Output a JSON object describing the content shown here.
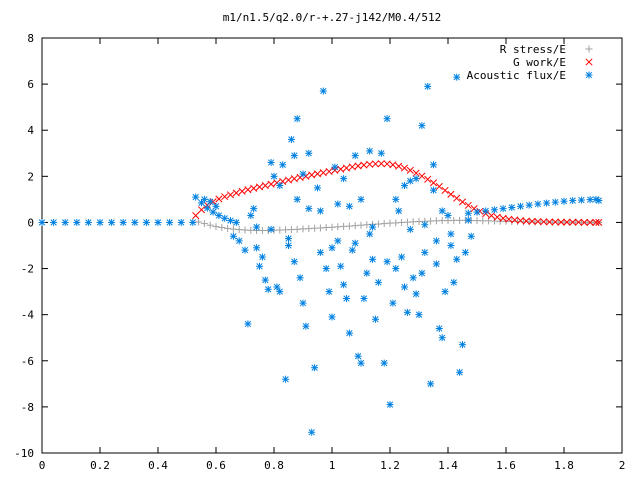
{
  "chart_data": {
    "type": "scatter",
    "title": "m1/n1.5/q2.0/r-+.27-j142/M0.4/512",
    "xlabel": "",
    "ylabel": "",
    "xlim": [
      0,
      2
    ],
    "ylim": [
      -10,
      8
    ],
    "x_ticks": [
      "0",
      "0.2",
      "0.4",
      "0.6",
      "0.8",
      "1",
      "1.2",
      "1.4",
      "1.6",
      "1.8",
      "2"
    ],
    "y_ticks": [
      "-10",
      "-8",
      "-6",
      "-4",
      "-2",
      "0",
      "2",
      "4",
      "6",
      "8"
    ],
    "legend_position": "top-right",
    "series": [
      {
        "name": "R stress/E",
        "marker": "+",
        "color": "#a0a0a0",
        "points": [
          [
            0.54,
            0.02
          ],
          [
            0.56,
            -0.05
          ],
          [
            0.58,
            -0.12
          ],
          [
            0.6,
            -0.18
          ],
          [
            0.62,
            -0.22
          ],
          [
            0.64,
            -0.26
          ],
          [
            0.66,
            -0.29
          ],
          [
            0.68,
            -0.31
          ],
          [
            0.7,
            -0.33
          ],
          [
            0.72,
            -0.34
          ],
          [
            0.74,
            -0.35
          ],
          [
            0.76,
            -0.35
          ],
          [
            0.78,
            -0.35
          ],
          [
            0.8,
            -0.34
          ],
          [
            0.82,
            -0.33
          ],
          [
            0.84,
            -0.32
          ],
          [
            0.86,
            -0.31
          ],
          [
            0.88,
            -0.3
          ],
          [
            0.9,
            -0.28
          ],
          [
            0.92,
            -0.27
          ],
          [
            0.94,
            -0.25
          ],
          [
            0.96,
            -0.24
          ],
          [
            0.98,
            -0.22
          ],
          [
            1.0,
            -0.21
          ],
          [
            1.02,
            -0.19
          ],
          [
            1.04,
            -0.17
          ],
          [
            1.06,
            -0.16
          ],
          [
            1.08,
            -0.14
          ],
          [
            1.1,
            -0.12
          ],
          [
            1.12,
            -0.1
          ],
          [
            1.14,
            -0.08
          ],
          [
            1.16,
            -0.07
          ],
          [
            1.18,
            -0.05
          ],
          [
            1.2,
            -0.03
          ],
          [
            1.22,
            -0.02
          ],
          [
            1.24,
            0.0
          ],
          [
            1.26,
            0.01
          ],
          [
            1.28,
            0.03
          ],
          [
            1.3,
            0.04
          ],
          [
            1.32,
            0.05
          ],
          [
            1.34,
            0.06
          ],
          [
            1.36,
            0.07
          ],
          [
            1.38,
            0.08
          ],
          [
            1.4,
            0.08
          ],
          [
            1.42,
            0.09
          ],
          [
            1.44,
            0.09
          ],
          [
            1.46,
            0.09
          ],
          [
            1.48,
            0.08
          ],
          [
            1.5,
            0.08
          ],
          [
            1.52,
            0.07
          ],
          [
            1.54,
            0.07
          ],
          [
            1.56,
            0.06
          ],
          [
            1.58,
            0.05
          ],
          [
            1.6,
            0.05
          ],
          [
            1.62,
            0.04
          ],
          [
            1.64,
            0.04
          ],
          [
            1.66,
            0.03
          ],
          [
            1.68,
            0.03
          ],
          [
            1.7,
            0.02
          ],
          [
            1.72,
            0.02
          ],
          [
            1.74,
            0.02
          ],
          [
            1.76,
            0.01
          ],
          [
            1.78,
            0.01
          ],
          [
            1.8,
            0.01
          ],
          [
            1.82,
            0.01
          ],
          [
            1.84,
            0.01
          ],
          [
            1.86,
            0.0
          ],
          [
            1.88,
            0.0
          ],
          [
            1.9,
            0.0
          ],
          [
            1.92,
            0.0
          ]
        ]
      },
      {
        "name": "G work/E",
        "marker": "x",
        "color": "#ff0000",
        "points": [
          [
            0.53,
            0.3
          ],
          [
            0.55,
            0.55
          ],
          [
            0.57,
            0.75
          ],
          [
            0.59,
            0.9
          ],
          [
            0.61,
            1.02
          ],
          [
            0.63,
            1.12
          ],
          [
            0.65,
            1.2
          ],
          [
            0.67,
            1.28
          ],
          [
            0.69,
            1.35
          ],
          [
            0.71,
            1.42
          ],
          [
            0.73,
            1.48
          ],
          [
            0.75,
            1.54
          ],
          [
            0.77,
            1.6
          ],
          [
            0.79,
            1.66
          ],
          [
            0.81,
            1.72
          ],
          [
            0.83,
            1.78
          ],
          [
            0.85,
            1.84
          ],
          [
            0.87,
            1.9
          ],
          [
            0.89,
            1.95
          ],
          [
            0.91,
            2.0
          ],
          [
            0.93,
            2.06
          ],
          [
            0.95,
            2.11
          ],
          [
            0.97,
            2.16
          ],
          [
            0.99,
            2.21
          ],
          [
            1.01,
            2.26
          ],
          [
            1.03,
            2.31
          ],
          [
            1.05,
            2.36
          ],
          [
            1.07,
            2.41
          ],
          [
            1.09,
            2.45
          ],
          [
            1.11,
            2.49
          ],
          [
            1.13,
            2.52
          ],
          [
            1.15,
            2.54
          ],
          [
            1.17,
            2.55
          ],
          [
            1.19,
            2.54
          ],
          [
            1.21,
            2.5
          ],
          [
            1.23,
            2.44
          ],
          [
            1.25,
            2.36
          ],
          [
            1.27,
            2.26
          ],
          [
            1.29,
            2.14
          ],
          [
            1.31,
            2.01
          ],
          [
            1.33,
            1.87
          ],
          [
            1.35,
            1.72
          ],
          [
            1.37,
            1.56
          ],
          [
            1.39,
            1.39
          ],
          [
            1.41,
            1.22
          ],
          [
            1.43,
            1.05
          ],
          [
            1.45,
            0.89
          ],
          [
            1.47,
            0.74
          ],
          [
            1.49,
            0.6
          ],
          [
            1.51,
            0.48
          ],
          [
            1.53,
            0.38
          ],
          [
            1.55,
            0.3
          ],
          [
            1.57,
            0.23
          ],
          [
            1.59,
            0.18
          ],
          [
            1.61,
            0.14
          ],
          [
            1.63,
            0.11
          ],
          [
            1.65,
            0.08
          ],
          [
            1.67,
            0.06
          ],
          [
            1.69,
            0.05
          ],
          [
            1.71,
            0.04
          ],
          [
            1.73,
            0.03
          ],
          [
            1.75,
            0.02
          ],
          [
            1.77,
            0.02
          ],
          [
            1.79,
            0.01
          ],
          [
            1.81,
            0.01
          ],
          [
            1.83,
            0.01
          ],
          [
            1.85,
            0.01
          ],
          [
            1.87,
            0.0
          ],
          [
            1.89,
            0.0
          ],
          [
            1.91,
            0.0
          ],
          [
            1.92,
            0.0
          ]
        ]
      },
      {
        "name": "Acoustic flux/E",
        "marker": "*",
        "color": "#0080e0",
        "points": [
          [
            0.0,
            0.0
          ],
          [
            0.04,
            0.0
          ],
          [
            0.08,
            0.0
          ],
          [
            0.12,
            0.0
          ],
          [
            0.16,
            0.0
          ],
          [
            0.2,
            0.0
          ],
          [
            0.24,
            0.0
          ],
          [
            0.28,
            0.0
          ],
          [
            0.32,
            0.0
          ],
          [
            0.36,
            0.0
          ],
          [
            0.4,
            0.0
          ],
          [
            0.44,
            0.0
          ],
          [
            0.48,
            0.0
          ],
          [
            0.52,
            0.0
          ],
          [
            0.53,
            1.1
          ],
          [
            0.55,
            0.85
          ],
          [
            0.57,
            0.62
          ],
          [
            0.59,
            0.45
          ],
          [
            0.61,
            0.3
          ],
          [
            0.63,
            0.18
          ],
          [
            0.65,
            0.08
          ],
          [
            0.67,
            0.0
          ],
          [
            0.56,
            1.0
          ],
          [
            0.58,
            0.9
          ],
          [
            0.6,
            0.7
          ],
          [
            1.47,
            0.4
          ],
          [
            1.5,
            0.45
          ],
          [
            1.53,
            0.5
          ],
          [
            1.56,
            0.55
          ],
          [
            1.59,
            0.6
          ],
          [
            1.62,
            0.65
          ],
          [
            1.65,
            0.7
          ],
          [
            1.68,
            0.75
          ],
          [
            1.71,
            0.8
          ],
          [
            1.74,
            0.84
          ],
          [
            1.77,
            0.88
          ],
          [
            1.8,
            0.92
          ],
          [
            1.83,
            0.95
          ],
          [
            1.86,
            0.97
          ],
          [
            1.89,
            0.99
          ],
          [
            1.91,
            1.0
          ],
          [
            1.92,
            0.95
          ],
          [
            0.66,
            -0.6
          ],
          [
            0.68,
            -0.8
          ],
          [
            0.7,
            -1.2
          ],
          [
            0.71,
            -4.4
          ],
          [
            0.72,
            0.3
          ],
          [
            0.74,
            -0.2
          ],
          [
            0.75,
            -1.9
          ],
          [
            0.76,
            -1.5
          ],
          [
            0.77,
            -2.5
          ],
          [
            0.78,
            -2.9
          ],
          [
            0.79,
            2.6
          ],
          [
            0.8,
            2.0
          ],
          [
            0.81,
            -2.8
          ],
          [
            0.82,
            -3.0
          ],
          [
            0.83,
            2.5
          ],
          [
            0.84,
            -6.8
          ],
          [
            0.85,
            -1.0
          ],
          [
            0.86,
            3.6
          ],
          [
            0.87,
            2.9
          ],
          [
            0.88,
            4.5
          ],
          [
            0.89,
            -2.4
          ],
          [
            0.9,
            -3.5
          ],
          [
            0.91,
            -4.5
          ],
          [
            0.92,
            3.0
          ],
          [
            0.93,
            -9.1
          ],
          [
            0.94,
            -6.3
          ],
          [
            0.95,
            1.5
          ],
          [
            0.96,
            -1.3
          ],
          [
            0.97,
            5.7
          ],
          [
            0.98,
            -2.0
          ],
          [
            0.99,
            -3.0
          ],
          [
            1.0,
            -4.1
          ],
          [
            1.01,
            2.4
          ],
          [
            1.02,
            -0.8
          ],
          [
            1.03,
            -1.9
          ],
          [
            1.04,
            -2.7
          ],
          [
            1.05,
            -3.3
          ],
          [
            1.06,
            -4.8
          ],
          [
            1.07,
            -1.2
          ],
          [
            1.08,
            2.9
          ],
          [
            1.09,
            -5.8
          ],
          [
            1.1,
            -6.1
          ],
          [
            1.11,
            -3.3
          ],
          [
            1.12,
            -2.2
          ],
          [
            1.13,
            -0.5
          ],
          [
            1.14,
            -1.6
          ],
          [
            1.15,
            -4.2
          ],
          [
            1.16,
            -2.6
          ],
          [
            1.17,
            3.0
          ],
          [
            1.18,
            -6.1
          ],
          [
            1.19,
            4.5
          ],
          [
            1.2,
            -7.9
          ],
          [
            1.21,
            -3.5
          ],
          [
            1.22,
            -2.0
          ],
          [
            1.23,
            0.5
          ],
          [
            1.24,
            -1.5
          ],
          [
            1.25,
            -2.8
          ],
          [
            1.26,
            -3.9
          ],
          [
            1.27,
            1.8
          ],
          [
            1.28,
            -2.4
          ],
          [
            1.29,
            -3.1
          ],
          [
            1.3,
            -4.0
          ],
          [
            1.31,
            4.2
          ],
          [
            1.32,
            -1.3
          ],
          [
            1.33,
            5.9
          ],
          [
            1.34,
            -7.0
          ],
          [
            1.35,
            2.5
          ],
          [
            1.36,
            -1.8
          ],
          [
            1.37,
            -4.6
          ],
          [
            1.38,
            -5.0
          ],
          [
            1.39,
            -3.0
          ],
          [
            1.4,
            0.3
          ],
          [
            1.41,
            -1.0
          ],
          [
            1.42,
            -2.6
          ],
          [
            1.43,
            6.3
          ],
          [
            1.44,
            -6.5
          ],
          [
            1.45,
            -5.3
          ],
          [
            1.46,
            -1.3
          ],
          [
            1.47,
            0.1
          ],
          [
            1.48,
            -0.6
          ],
          [
            0.96,
            0.5
          ],
          [
            1.02,
            0.8
          ],
          [
            1.06,
            0.7
          ],
          [
            1.1,
            1.0
          ],
          [
            1.14,
            -0.2
          ],
          [
            1.25,
            1.6
          ],
          [
            1.29,
            1.9
          ],
          [
            1.32,
            -0.1
          ],
          [
            1.38,
            0.5
          ],
          [
            0.88,
            1.0
          ],
          [
            0.92,
            0.6
          ],
          [
            0.85,
            -0.7
          ],
          [
            0.74,
            -1.1
          ],
          [
            0.79,
            -0.3
          ],
          [
            1.36,
            -0.8
          ],
          [
            1.27,
            -0.3
          ],
          [
            1.41,
            -0.5
          ],
          [
            0.82,
            1.6
          ],
          [
            0.9,
            2.1
          ],
          [
            1.04,
            1.9
          ],
          [
            1.13,
            3.1
          ],
          [
            1.22,
            1.0
          ],
          [
            1.35,
            1.4
          ],
          [
            0.73,
            0.6
          ],
          [
            0.87,
            -1.7
          ],
          [
            1.0,
            -1.1
          ],
          [
            1.08,
            -0.9
          ],
          [
            1.19,
            -1.7
          ],
          [
            1.31,
            -2.2
          ],
          [
            1.43,
            -1.6
          ]
        ]
      }
    ]
  }
}
